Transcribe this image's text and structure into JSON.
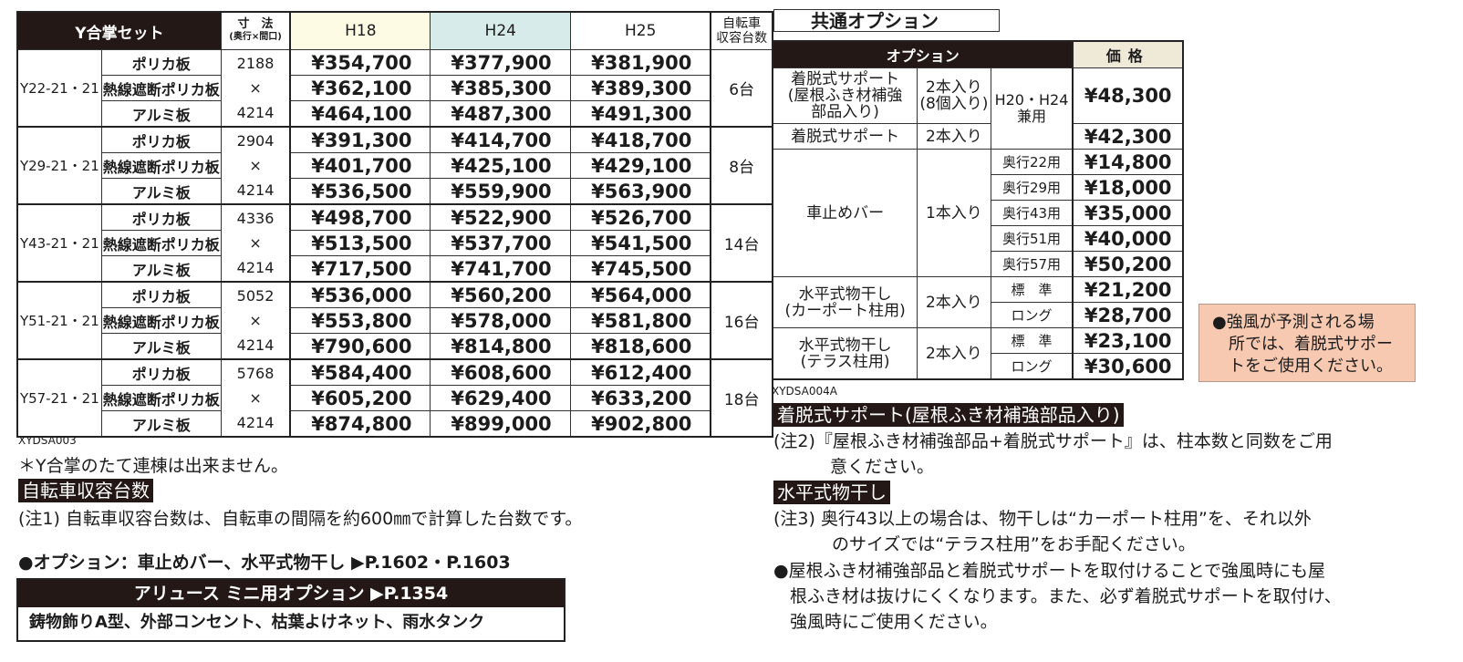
{
  "main_table": {
    "header": {
      "model": "Y合掌セット",
      "dim_title": "寸　法",
      "dim_sub": "(奥行×間口)",
      "h18": "H18",
      "h24": "H24",
      "h25": "H25",
      "bike_1": "自転車",
      "bike_2": "収容台数"
    },
    "groups": [
      {
        "model": "Y22-21・21",
        "depth": "2188",
        "x": "×",
        "width": "4214",
        "count": "6台",
        "rows": [
          {
            "material": "ポリカ板",
            "h18": "¥354,700",
            "h24": "¥377,900",
            "h25": "¥381,900"
          },
          {
            "material": "熱線遮断ポリカ板",
            "h18": "¥362,100",
            "h24": "¥385,300",
            "h25": "¥389,300"
          },
          {
            "material": "アルミ板",
            "h18": "¥464,100",
            "h24": "¥487,300",
            "h25": "¥491,300"
          }
        ]
      },
      {
        "model": "Y29-21・21",
        "depth": "2904",
        "x": "×",
        "width": "4214",
        "count": "8台",
        "rows": [
          {
            "material": "ポリカ板",
            "h18": "¥391,300",
            "h24": "¥414,700",
            "h25": "¥418,700"
          },
          {
            "material": "熱線遮断ポリカ板",
            "h18": "¥401,700",
            "h24": "¥425,100",
            "h25": "¥429,100"
          },
          {
            "material": "アルミ板",
            "h18": "¥536,500",
            "h24": "¥559,900",
            "h25": "¥563,900"
          }
        ]
      },
      {
        "model": "Y43-21・21",
        "depth": "4336",
        "x": "×",
        "width": "4214",
        "count": "14台",
        "rows": [
          {
            "material": "ポリカ板",
            "h18": "¥498,700",
            "h24": "¥522,900",
            "h25": "¥526,700"
          },
          {
            "material": "熱線遮断ポリカ板",
            "h18": "¥513,500",
            "h24": "¥537,700",
            "h25": "¥541,500"
          },
          {
            "material": "アルミ板",
            "h18": "¥717,500",
            "h24": "¥741,700",
            "h25": "¥745,500"
          }
        ]
      },
      {
        "model": "Y51-21・21",
        "depth": "5052",
        "x": "×",
        "width": "4214",
        "count": "16台",
        "rows": [
          {
            "material": "ポリカ板",
            "h18": "¥536,000",
            "h24": "¥560,200",
            "h25": "¥564,000"
          },
          {
            "material": "熱線遮断ポリカ板",
            "h18": "¥553,800",
            "h24": "¥578,000",
            "h25": "¥581,800"
          },
          {
            "material": "アルミ板",
            "h18": "¥790,600",
            "h24": "¥814,800",
            "h25": "¥818,600"
          }
        ]
      },
      {
        "model": "Y57-21・21",
        "depth": "5768",
        "x": "×",
        "width": "4214",
        "count": "18台",
        "rows": [
          {
            "material": "ポリカ板",
            "h18": "¥584,400",
            "h24": "¥608,600",
            "h25": "¥612,400"
          },
          {
            "material": "熱線遮断ポリカ板",
            "h18": "¥605,200",
            "h24": "¥629,400",
            "h25": "¥633,200"
          },
          {
            "material": "アルミ板",
            "h18": "¥874,800",
            "h24": "¥899,000",
            "h25": "¥902,800"
          }
        ]
      }
    ],
    "code": "XYDSA003"
  },
  "left_notes": {
    "note_y": "＊Y合掌のたて連棟は出来ません。",
    "bike_label": "自転車収容台数",
    "note1": "(注1) 自転車収容台数は、自転車の間隔を約600㎜で計算した台数です。",
    "option_line": "●オプション：車止めバー、水平式物干し ▶P.1602・P.1603",
    "box_title": "アリュース ミニ用オプション ▶P.1354",
    "box_body": "鋳物飾りA型、外部コンセント、枯葉よけネット、雨水タンク"
  },
  "option_table": {
    "section_title": "共通オプション",
    "hd_option": "オプション",
    "hd_price": "価格",
    "support_reinforced": {
      "name_1": "着脱式サポート",
      "name_2": "(屋根ふき材補強",
      "name_3": "部品入り)",
      "qty_1": "2本入り",
      "qty_2": "(8個入り)",
      "compat_1": "H20・H24",
      "compat_2": "兼用",
      "price": "¥48,300"
    },
    "support": {
      "name": "着脱式サポート",
      "qty": "2本入り",
      "price": "¥42,300"
    },
    "stopper": {
      "name": "車止めバー",
      "qty": "1本入り",
      "rows": [
        {
          "variant": "奥行22用",
          "price": "¥14,800"
        },
        {
          "variant": "奥行29用",
          "price": "¥18,000"
        },
        {
          "variant": "奥行43用",
          "price": "¥35,000"
        },
        {
          "variant": "奥行51用",
          "price": "¥40,000"
        },
        {
          "variant": "奥行57用",
          "price": "¥50,200"
        }
      ]
    },
    "dryer_carport": {
      "name_1": "水平式物干し",
      "name_2": "(カーポート柱用)",
      "qty": "2本入り",
      "rows": [
        {
          "variant": "標　準",
          "price": "¥21,200"
        },
        {
          "variant": "ロング",
          "price": "¥28,700"
        }
      ]
    },
    "dryer_terrace": {
      "name_1": "水平式物干し",
      "name_2": "(テラス柱用)",
      "qty": "2本入り",
      "rows": [
        {
          "variant": "標　準",
          "price": "¥23,100"
        },
        {
          "variant": "ロング",
          "price": "¥30,600"
        }
      ]
    },
    "code": "XYDSA004A"
  },
  "warning": {
    "line1": "●強風が予測される場",
    "line2": "所では、着脱式サポー",
    "line3": "トをご使用ください。"
  },
  "right_notes": {
    "label1": "着脱式サポート(屋根ふき材補強部品入り)",
    "note2_a": "(注2)『屋根ふき材補強部品+着脱式サポート』は、柱本数と同数をご用",
    "note2_b": "意ください。",
    "label2": "水平式物干し",
    "note3_a": "(注3) 奥行43以上の場合は、物干しは“カーポート柱用”を、それ以外",
    "note3_b": "のサイズでは“テラス柱用”をお手配ください。",
    "bullet_a": "●屋根ふき材補強部品と着脱式サポートを取付けることで強風時にも屋",
    "bullet_b": "根ふき材は抜けにくくなります。また、必ず着脱式サポートを取付け、",
    "bullet_c": "強風時にご使用ください。"
  },
  "colors": {
    "header_black": "#231815",
    "h18_bg": "#fdfbe3",
    "h24_bg": "#d7ebea",
    "price_hd_bg": "#efe9d8",
    "warning_bg": "#f7c9b0"
  }
}
